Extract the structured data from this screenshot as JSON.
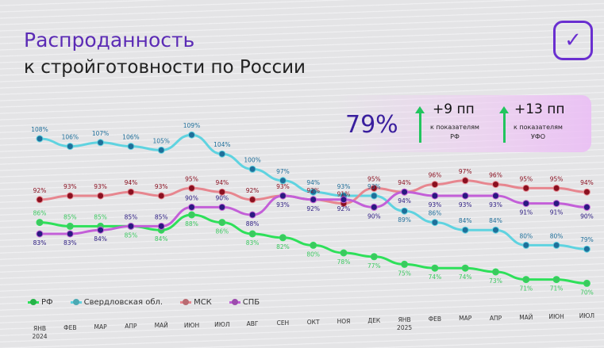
{
  "title": {
    "line1": "Распроданность",
    "line2": "к стройготовности по России"
  },
  "kpi": {
    "value": "79%",
    "items": [
      {
        "delta": "+9 пп",
        "caption1": "к показателям",
        "caption2": "РФ"
      },
      {
        "delta": "+13 пп",
        "caption1": "к показателям",
        "caption2": "УФО"
      }
    ],
    "accent": "#3a1f9e",
    "arrow_color": "#22c55e"
  },
  "icons": {
    "badge": "check-icon"
  },
  "chart_data": {
    "type": "line",
    "categories": [
      "ЯНВ 2024",
      "ФЕВ",
      "МАР",
      "АПР",
      "МАЙ",
      "ИЮН",
      "ИЮЛ",
      "АВГ",
      "СЕН",
      "ОКТ",
      "НОЯ",
      "ДЕК",
      "ЯНВ 2025",
      "ФЕВ",
      "МАР",
      "АПР",
      "МАЙ",
      "ИЮН",
      "ИЮЛ"
    ],
    "category_labels": [
      [
        "ЯНВ",
        "2024"
      ],
      [
        "ФЕВ"
      ],
      [
        "МАР"
      ],
      [
        "АПР"
      ],
      [
        "МАЙ"
      ],
      [
        "ИЮН"
      ],
      [
        "ИЮЛ"
      ],
      [
        "АВГ"
      ],
      [
        "СЕН"
      ],
      [
        "ОКТ"
      ],
      [
        "НОЯ"
      ],
      [
        "ДЕК"
      ],
      [
        "ЯНВ",
        "2025"
      ],
      [
        "ФЕВ"
      ],
      [
        "МАР"
      ],
      [
        "АПР"
      ],
      [
        "МАЙ"
      ],
      [
        "ИЮН"
      ],
      [
        "ИЮЛ"
      ]
    ],
    "unit": "%",
    "legend_position": "bottom-left",
    "grid": false,
    "series": [
      {
        "name": "РФ",
        "color": "#2ee05a",
        "label_color": "#3cc860",
        "values": [
          86,
          85,
          85,
          85,
          84,
          88,
          86,
          83,
          82,
          80,
          78,
          77,
          75,
          74,
          74,
          73,
          71,
          71,
          70
        ]
      },
      {
        "name": "Свердловская обл.",
        "color": "#5fd3e0",
        "label_color": "#1f6f9a",
        "values": [
          108,
          106,
          107,
          106,
          105,
          109,
          104,
          100,
          97,
          94,
          93,
          93,
          89,
          86,
          84,
          84,
          80,
          80,
          79
        ]
      },
      {
        "name": "МСК",
        "color": "#e7868f",
        "label_color": "#8a1020",
        "values": [
          92,
          93,
          93,
          94,
          93,
          95,
          94,
          92,
          93,
          92,
          91,
          95,
          94,
          96,
          97,
          96,
          95,
          95,
          94
        ]
      },
      {
        "name": "СПБ",
        "color": "#c35fd8",
        "label_color": "#2a1a80",
        "values": [
          83,
          83,
          84,
          85,
          85,
          90,
          90,
          88,
          93,
          92,
          92,
          90,
          94,
          93,
          93,
          93,
          91,
          91,
          90
        ]
      }
    ]
  }
}
